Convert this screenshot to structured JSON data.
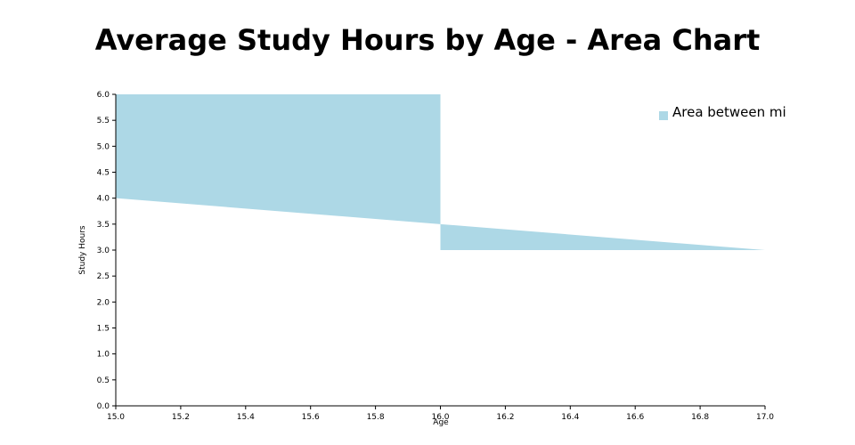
{
  "chart_data": {
    "type": "area",
    "title": "Average Study Hours by Age - Area Chart",
    "xlabel": "Age",
    "ylabel": "Study Hours",
    "xlim": [
      15.0,
      17.0
    ],
    "ylim": [
      0.0,
      6.0
    ],
    "x_ticks": [
      "15.0",
      "15.2",
      "15.4",
      "15.6",
      "15.8",
      "16.0",
      "16.2",
      "16.4",
      "16.6",
      "16.8",
      "17.0"
    ],
    "y_ticks": [
      "0.0",
      "0.5",
      "1.0",
      "1.5",
      "2.0",
      "2.5",
      "3.0",
      "3.5",
      "4.0",
      "4.5",
      "5.0",
      "5.5",
      "6.0"
    ],
    "grid": false,
    "legend_position": "top-right",
    "series": [
      {
        "name": "Area between mi",
        "color": "#add8e6",
        "upper": [
          {
            "x": 15.0,
            "y": 6.0
          },
          {
            "x": 16.0,
            "y": 6.0
          },
          {
            "x": 16.0,
            "y": 3.5
          },
          {
            "x": 17.0,
            "y": 3.0
          }
        ],
        "lower": [
          {
            "x": 15.0,
            "y": 4.0
          },
          {
            "x": 16.0,
            "y": 3.5
          },
          {
            "x": 16.0,
            "y": 3.0
          },
          {
            "x": 17.0,
            "y": 3.0
          }
        ]
      }
    ]
  }
}
